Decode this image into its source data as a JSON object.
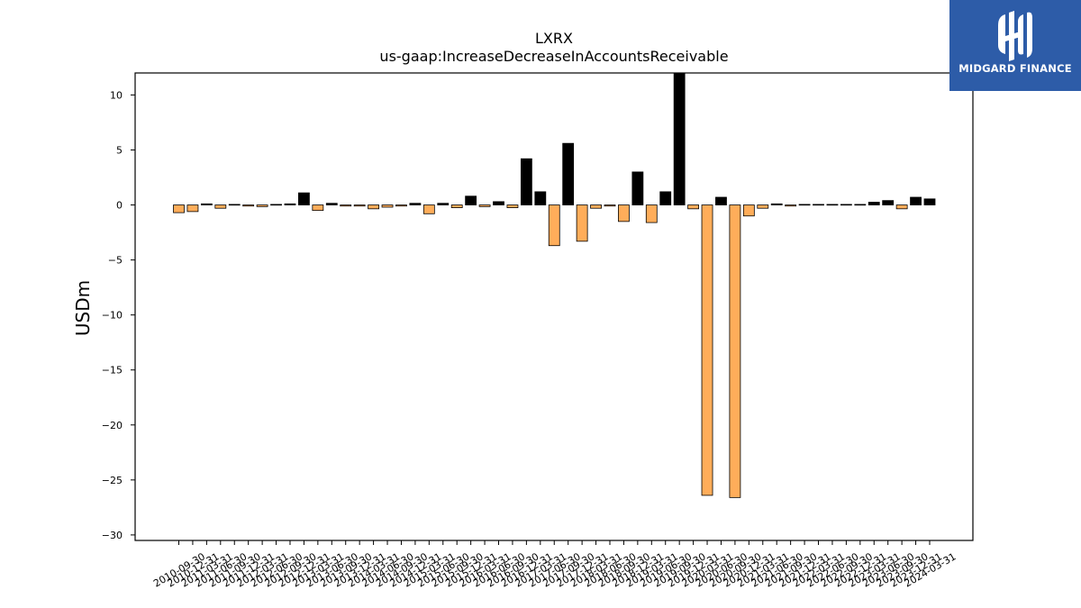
{
  "chart_data": {
    "type": "bar",
    "title": "LXRX",
    "subtitle": "us-gaap:IncreaseDecreaseInAccountsReceivable",
    "ylabel": "USDm",
    "xlabel": "",
    "ylim": [
      -30.5,
      12
    ],
    "yticks": [
      10,
      5,
      0,
      -5,
      -10,
      -15,
      -20,
      -25,
      -30
    ],
    "grid": false,
    "colors": {
      "positive_fill": "#000000",
      "negative_fill": "#ffad5a",
      "edge": "#000000"
    },
    "categories": [
      "2010-09-30",
      "2010-12-31",
      "2011-03-31",
      "2011-06-30",
      "2011-09-30",
      "2011-12-31",
      "2012-03-31",
      "2012-06-30",
      "2012-09-30",
      "2012-12-31",
      "2013-03-31",
      "2013-06-30",
      "2013-09-30",
      "2013-12-31",
      "2014-03-31",
      "2014-06-30",
      "2014-09-30",
      "2014-12-31",
      "2015-03-31",
      "2015-06-30",
      "2015-09-30",
      "2015-12-31",
      "2016-03-31",
      "2016-06-30",
      "2016-09-30",
      "2016-12-31",
      "2017-03-31",
      "2017-06-30",
      "2017-09-30",
      "2017-12-31",
      "2018-03-31",
      "2018-06-30",
      "2018-09-30",
      "2018-12-31",
      "2019-03-31",
      "2019-06-30",
      "2019-09-30",
      "2019-12-31",
      "2020-03-31",
      "2020-06-30",
      "2020-09-30",
      "2020-12-31",
      "2021-03-31",
      "2021-06-30",
      "2021-09-30",
      "2021-12-31",
      "2022-03-31",
      "2022-06-30",
      "2022-09-30",
      "2022-12-31",
      "2023-03-31",
      "2023-06-30",
      "2023-09-30",
      "2023-12-31",
      "2024-03-31"
    ],
    "values": [
      -0.7,
      -0.6,
      0.1,
      -0.3,
      0.05,
      -0.1,
      -0.15,
      0.05,
      0.1,
      1.1,
      -0.5,
      0.15,
      -0.1,
      -0.1,
      -0.35,
      -0.2,
      -0.1,
      0.15,
      -0.8,
      0.15,
      -0.25,
      0.8,
      -0.15,
      0.3,
      -0.25,
      4.2,
      1.2,
      -3.7,
      5.6,
      -3.3,
      -0.3,
      -0.1,
      -1.5,
      3.0,
      -1.6,
      1.2,
      12.2,
      -0.35,
      -26.4,
      0.7,
      -26.6,
      -1.0,
      -0.3,
      0.1,
      -0.1,
      0.05,
      0.05,
      0.05,
      0.05,
      0.05,
      0.25,
      0.4,
      -0.35,
      0.7,
      0.55
    ]
  },
  "logo": {
    "text": "MIDGARD FINANCE"
  }
}
